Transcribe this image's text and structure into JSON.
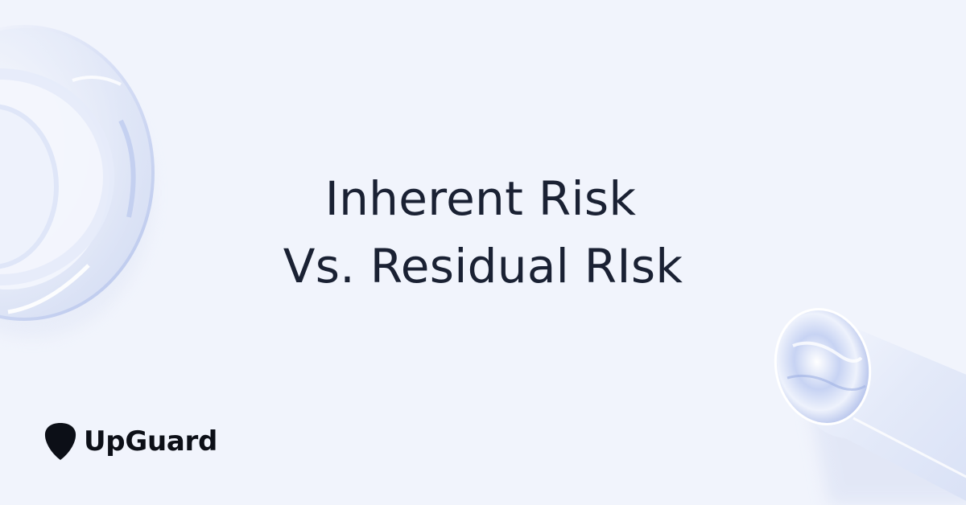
{
  "banner": {
    "title_line1": "Inherent Risk",
    "title_line2": "Vs. Residual RIsk"
  },
  "brand": {
    "name": "UpGuard",
    "logo_icon": "shield-icon"
  },
  "decorations": {
    "left": "glass-rings-icon",
    "right": "glass-cylinder-icon"
  },
  "colors": {
    "background": "#f1f4fc",
    "text": "#1a2133",
    "logo": "#0c0f17"
  }
}
